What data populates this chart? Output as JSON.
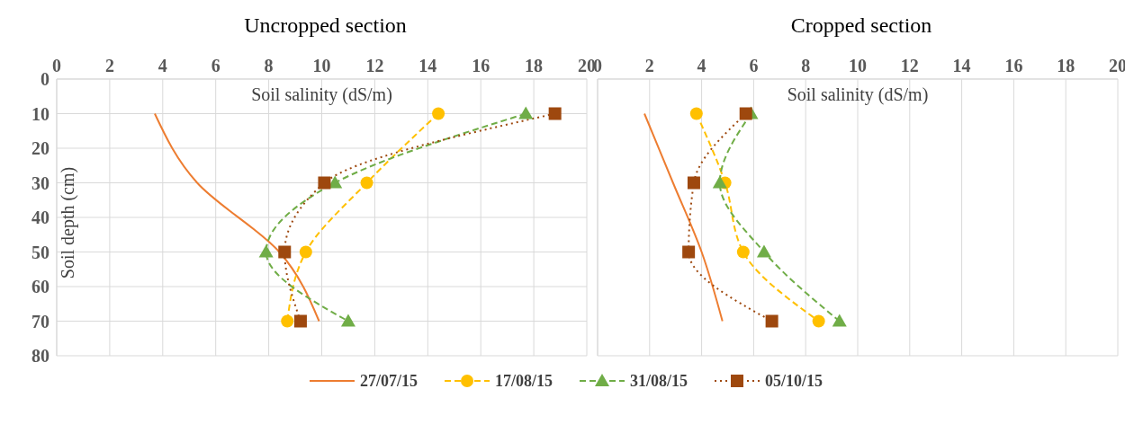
{
  "chart_data": [
    {
      "type": "line",
      "title": "Uncropped section",
      "xlabel": "Soil salinity (dS/m)",
      "ylabel": "Soil depth (cm)",
      "xlim": [
        0,
        20
      ],
      "xticks": [
        0,
        2,
        4,
        6,
        8,
        10,
        12,
        14,
        16,
        18,
        20
      ],
      "ylim": [
        80,
        0
      ],
      "yticks": [
        0,
        10,
        20,
        30,
        40,
        50,
        60,
        70,
        80
      ],
      "grid": true,
      "legend": "bottom",
      "series": [
        {
          "name": "27/07/15",
          "color": "#ed7d31",
          "marker": "none",
          "line_style": "solid",
          "x": [
            3.7,
            5.3,
            8.4,
            9.9
          ],
          "values": [
            10,
            30,
            50,
            70
          ]
        },
        {
          "name": "17/08/15",
          "color": "#ffc000",
          "marker": "circle",
          "line_style": "dashed",
          "x": [
            14.4,
            11.7,
            9.4,
            8.7
          ],
          "values": [
            10,
            30,
            50,
            70
          ]
        },
        {
          "name": "31/08/15",
          "color": "#70ad47",
          "marker": "triangle",
          "line_style": "dashed",
          "x": [
            17.7,
            10.5,
            7.9,
            11.0
          ],
          "values": [
            10,
            30,
            50,
            70
          ]
        },
        {
          "name": "05/10/15",
          "color": "#9e480e",
          "marker": "square",
          "line_style": "dotted",
          "x": [
            18.8,
            10.1,
            8.6,
            9.2
          ],
          "values": [
            10,
            30,
            50,
            70
          ]
        }
      ]
    },
    {
      "type": "line",
      "title": "Cropped section",
      "xlabel": "Soil salinity (dS/m)",
      "xlim": [
        0,
        20
      ],
      "xticks": [
        0,
        2,
        4,
        6,
        8,
        10,
        12,
        14,
        16,
        18,
        20
      ],
      "ylim": [
        80,
        0
      ],
      "yticks": [
        0,
        10,
        20,
        30,
        40,
        50,
        60,
        70,
        80
      ],
      "grid": true,
      "tick_labels": "x",
      "series": [
        {
          "color": "#ed7d31",
          "marker": "none",
          "line_style": "solid",
          "x": [
            1.8,
            2.9,
            4.0,
            4.8
          ],
          "values": [
            10,
            30,
            50,
            70
          ]
        },
        {
          "color": "#ffc000",
          "marker": "circle",
          "line_style": "dashed",
          "x": [
            3.8,
            4.9,
            5.6,
            8.5
          ],
          "values": [
            10,
            30,
            50,
            70
          ]
        },
        {
          "color": "#70ad47",
          "marker": "triangle",
          "line_style": "dashed",
          "x": [
            5.9,
            4.7,
            6.4,
            9.3
          ],
          "values": [
            10,
            30,
            50,
            70
          ]
        },
        {
          "color": "#9e480e",
          "marker": "square",
          "line_style": "dotted",
          "x": [
            5.7,
            3.7,
            3.5,
            6.7
          ],
          "values": [
            10,
            30,
            50,
            70
          ]
        }
      ]
    }
  ]
}
